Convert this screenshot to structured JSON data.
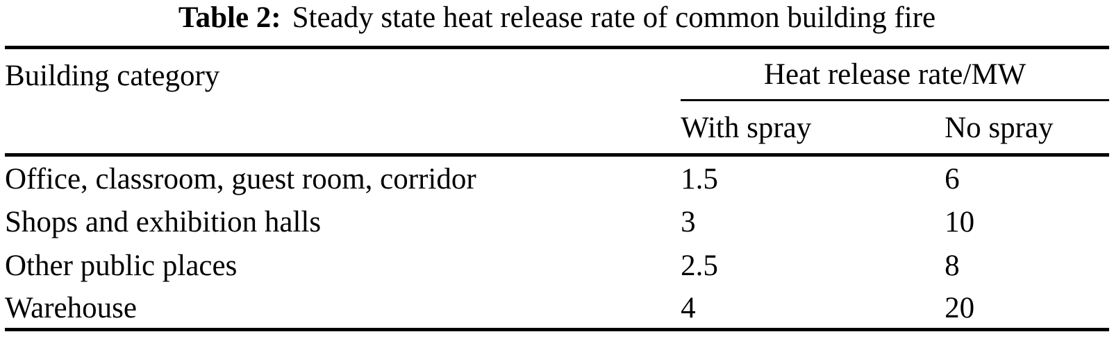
{
  "caption": {
    "label": "Table 2:",
    "text": "Steady state heat release rate of common building fire"
  },
  "table": {
    "col1_header": "Building category",
    "group_header": "Heat release rate/MW",
    "sub_headers": [
      "With spray",
      "No spray"
    ],
    "rows": [
      {
        "category": "Office, classroom, guest room, corridor",
        "with_spray": "1.5",
        "no_spray": "6"
      },
      {
        "category": "Shops and exhibition halls",
        "with_spray": "3",
        "no_spray": "10"
      },
      {
        "category": "Other public places",
        "with_spray": "2.5",
        "no_spray": "8"
      },
      {
        "category": "Warehouse",
        "with_spray": "4",
        "no_spray": "20"
      }
    ]
  },
  "chart_data": {
    "type": "table",
    "title": "Table 2: Steady state heat release rate of common building fire",
    "columns": [
      "Building category",
      "Heat release rate/MW — With spray",
      "Heat release rate/MW — No spray"
    ],
    "rows": [
      [
        "Office, classroom, guest room, corridor",
        1.5,
        6
      ],
      [
        "Shops and exhibition halls",
        3,
        10
      ],
      [
        "Other public places",
        2.5,
        8
      ],
      [
        "Warehouse",
        4,
        20
      ]
    ]
  },
  "colors": {
    "text": "#000000",
    "background": "#ffffff",
    "rule": "#000000"
  }
}
